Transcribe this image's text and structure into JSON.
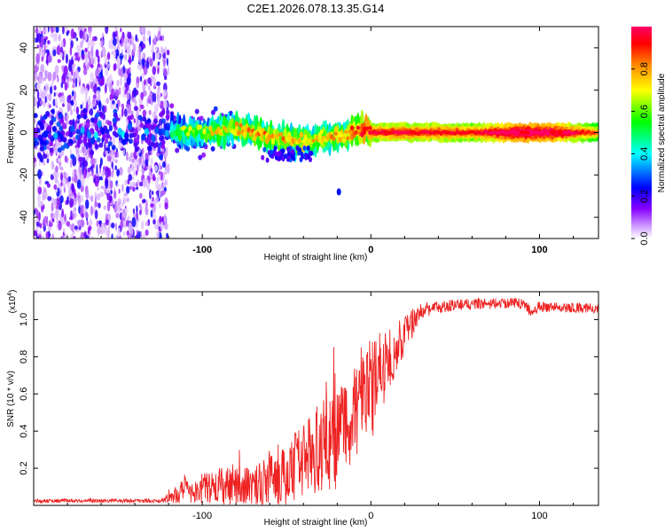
{
  "title": "C2E1.2026.078.13.35.G14",
  "chart_data": [
    {
      "type": "heatmap",
      "name": "spectrogram",
      "xlabel": "Height of straight line (km)",
      "ylabel": "Frequency (Hz)",
      "xlim": [
        -200,
        135
      ],
      "ylim": [
        -50,
        50
      ],
      "xticks": [
        -100,
        0,
        100
      ],
      "yticks": [
        -40,
        -20,
        0,
        20,
        40
      ],
      "colorbar": {
        "label": "Normalized spectral amplitude",
        "range": [
          0,
          1
        ],
        "ticks": [
          0.0,
          0.2,
          0.4,
          0.6,
          0.8
        ],
        "colors": [
          "#ffffff",
          "#8800ff",
          "#0000ff",
          "#00ffff",
          "#00ff00",
          "#ffff00",
          "#ff8800",
          "#ff0000",
          "#ff0066"
        ]
      },
      "noise_region_xmax": -120,
      "ridge": [
        {
          "x": -190,
          "y": 0,
          "amp": 0.35
        },
        {
          "x": -120,
          "y": 0,
          "amp": 0.4
        },
        {
          "x": -100,
          "y": 0,
          "amp": 0.5
        },
        {
          "x": -80,
          "y": 2,
          "amp": 0.6
        },
        {
          "x": -60,
          "y": -2,
          "amp": 0.65
        },
        {
          "x": -40,
          "y": -4,
          "amp": 0.6
        },
        {
          "x": -20,
          "y": -2,
          "amp": 0.6
        },
        {
          "x": -3,
          "y": 2,
          "amp": 0.75
        },
        {
          "x": 0,
          "y": 0,
          "amp": 0.8
        },
        {
          "x": 20,
          "y": 0,
          "amp": 0.82
        },
        {
          "x": 60,
          "y": 0,
          "amp": 0.78
        },
        {
          "x": 90,
          "y": 0,
          "amp": 0.95
        },
        {
          "x": 110,
          "y": 0,
          "amp": 0.9
        },
        {
          "x": 135,
          "y": 0,
          "amp": 0.7
        }
      ],
      "isolated_points": [
        {
          "x": -19,
          "y": -28,
          "amp": 0.25
        }
      ]
    },
    {
      "type": "line",
      "name": "snr",
      "xlabel": "Height of straight line (km)",
      "ylabel": "SNR (10 * v/v)",
      "multiplier_label": "(x10",
      "multiplier_exp": "4",
      "multiplier_close": ")",
      "xlim": [
        -200,
        135
      ],
      "ylim": [
        0,
        1.15
      ],
      "xticks": [
        -100,
        0,
        100
      ],
      "yticks": [
        0.2,
        0.4,
        0.6,
        0.8,
        1.0
      ],
      "ytick_labels": [
        "0.2",
        "0.4",
        "0.6",
        "0.8",
        "1.0"
      ],
      "color": "#ee2222",
      "envelope": [
        {
          "x": -200,
          "mean": 0.025,
          "noise": 0.01
        },
        {
          "x": -125,
          "mean": 0.025,
          "noise": 0.01
        },
        {
          "x": -110,
          "mean": 0.08,
          "noise": 0.07
        },
        {
          "x": -90,
          "mean": 0.1,
          "noise": 0.1
        },
        {
          "x": -70,
          "mean": 0.11,
          "noise": 0.11
        },
        {
          "x": -50,
          "mean": 0.16,
          "noise": 0.16
        },
        {
          "x": -35,
          "mean": 0.28,
          "noise": 0.22
        },
        {
          "x": -20,
          "mean": 0.38,
          "noise": 0.3
        },
        {
          "x": -10,
          "mean": 0.5,
          "noise": 0.25
        },
        {
          "x": 0,
          "mean": 0.62,
          "noise": 0.28
        },
        {
          "x": 10,
          "mean": 0.78,
          "noise": 0.18
        },
        {
          "x": 20,
          "mean": 0.92,
          "noise": 0.12
        },
        {
          "x": 30,
          "mean": 1.05,
          "noise": 0.04
        },
        {
          "x": 50,
          "mean": 1.08,
          "noise": 0.03
        },
        {
          "x": 90,
          "mean": 1.09,
          "noise": 0.03
        },
        {
          "x": 95,
          "mean": 1.04,
          "noise": 0.03
        },
        {
          "x": 100,
          "mean": 1.07,
          "noise": 0.03
        },
        {
          "x": 135,
          "mean": 1.06,
          "noise": 0.025
        }
      ]
    }
  ]
}
